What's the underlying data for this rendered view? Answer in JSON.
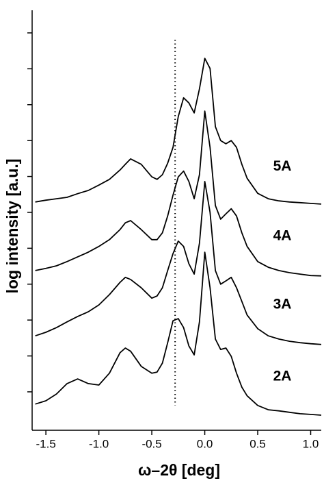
{
  "chart_data": {
    "type": "line",
    "xlabel": "ω–2θ      [deg]",
    "ylabel": "log intensity     [a.u.]",
    "x": [
      -1.6,
      -1.5,
      -1.4,
      -1.3,
      -1.2,
      -1.1,
      -1.0,
      -0.9,
      -0.8,
      -0.75,
      -0.7,
      -0.6,
      -0.5,
      -0.45,
      -0.4,
      -0.35,
      -0.3,
      -0.25,
      -0.2,
      -0.15,
      -0.1,
      -0.05,
      0.0,
      0.05,
      0.1,
      0.15,
      0.2,
      0.25,
      0.3,
      0.35,
      0.4,
      0.5,
      0.6,
      0.7,
      0.8,
      0.9,
      1.0,
      1.1
    ],
    "series": [
      {
        "name": "5A",
        "color": "#000000",
        "values": [
          5.29,
          5.34,
          5.38,
          5.42,
          5.52,
          5.61,
          5.76,
          5.92,
          6.18,
          6.34,
          6.49,
          6.34,
          5.99,
          5.92,
          6.05,
          6.37,
          6.81,
          7.67,
          8.19,
          8.05,
          7.77,
          8.44,
          9.29,
          9.01,
          7.39,
          7.0,
          6.91,
          7.0,
          6.81,
          6.34,
          5.95,
          5.53,
          5.38,
          5.32,
          5.29,
          5.27,
          5.25,
          5.23
        ]
      },
      {
        "name": "4A",
        "color": "#000000",
        "values": [
          3.38,
          3.44,
          3.51,
          3.63,
          3.76,
          3.89,
          4.05,
          4.24,
          4.52,
          4.71,
          4.77,
          4.52,
          4.24,
          4.24,
          4.43,
          4.9,
          5.48,
          5.99,
          6.15,
          5.86,
          5.38,
          6.05,
          7.82,
          6.81,
          5.19,
          4.81,
          4.96,
          5.1,
          4.9,
          4.43,
          4.05,
          3.63,
          3.47,
          3.38,
          3.32,
          3.28,
          3.24,
          3.23
        ]
      },
      {
        "name": "3A",
        "color": "#000000",
        "values": [
          1.56,
          1.66,
          1.79,
          1.95,
          2.1,
          2.23,
          2.42,
          2.71,
          3.05,
          3.19,
          3.13,
          2.9,
          2.61,
          2.67,
          2.9,
          3.38,
          3.85,
          4.2,
          4.05,
          3.57,
          3.28,
          4.14,
          5.86,
          5.0,
          3.38,
          3.0,
          3.09,
          3.19,
          2.9,
          2.52,
          2.14,
          1.76,
          1.56,
          1.47,
          1.41,
          1.37,
          1.34,
          1.32
        ]
      },
      {
        "name": "2A",
        "color": "#000000",
        "values": [
          -0.34,
          -0.25,
          -0.06,
          0.23,
          0.36,
          0.23,
          0.19,
          0.52,
          1.09,
          1.22,
          1.13,
          0.71,
          0.52,
          0.55,
          0.8,
          1.37,
          1.98,
          2.04,
          1.79,
          1.28,
          1.03,
          1.95,
          3.89,
          2.9,
          1.47,
          1.18,
          1.22,
          0.99,
          0.52,
          0.13,
          -0.11,
          -0.38,
          -0.5,
          -0.53,
          -0.57,
          -0.61,
          -0.63,
          -0.65
        ]
      }
    ],
    "vline": -0.28,
    "xlim": [
      -1.63,
      1.1
    ],
    "xticks": [
      -1.5,
      {
        "value": -1.0,
        "label": "-1.0"
      },
      -0.5,
      {
        "value": 0.0,
        "label": "0.0"
      },
      0.5,
      {
        "value": 1.0,
        "label": "1.0"
      }
    ],
    "ylim": [
      -1.07,
      10.63
    ],
    "yticks": [
      0,
      1,
      2,
      3,
      4,
      5,
      6,
      7,
      8,
      9,
      10
    ]
  }
}
